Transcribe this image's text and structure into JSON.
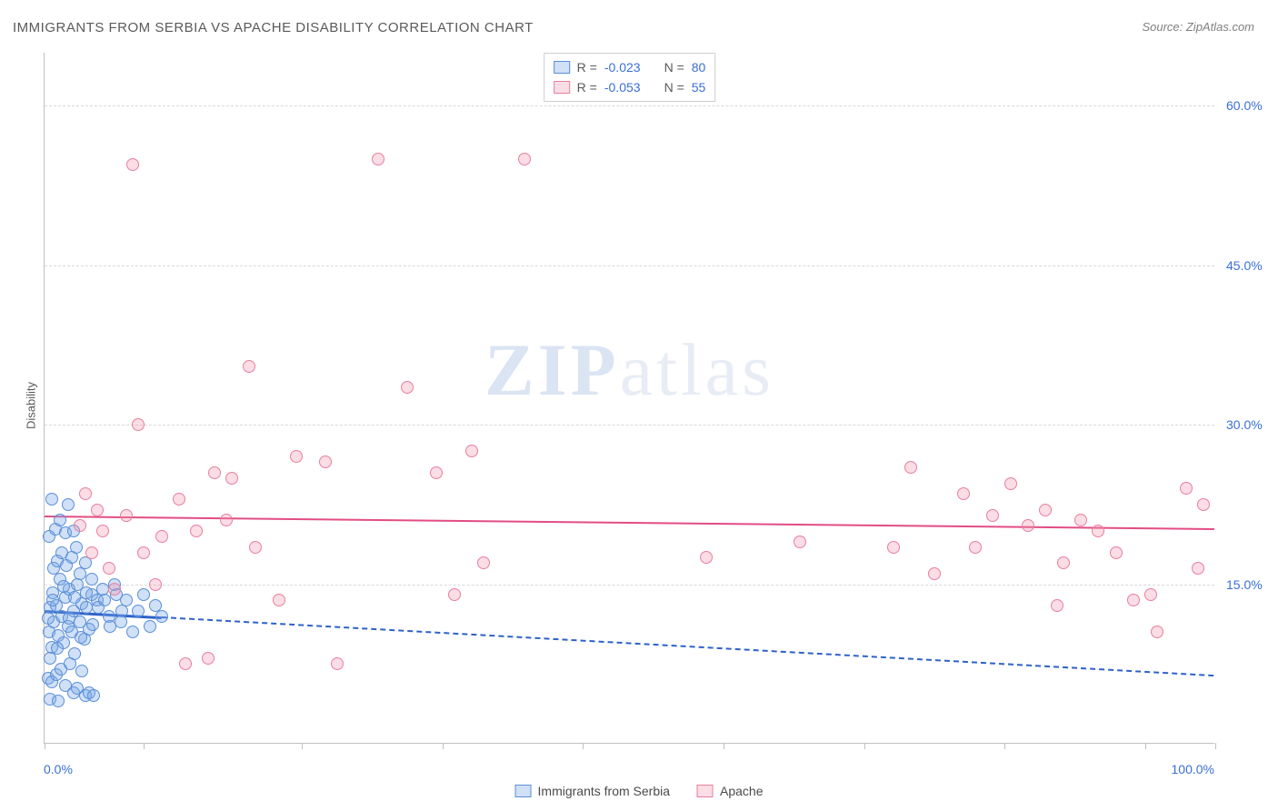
{
  "title": "IMMIGRANTS FROM SERBIA VS APACHE DISABILITY CORRELATION CHART",
  "source": "Source: ZipAtlas.com",
  "y_axis_label": "Disability",
  "watermark_a": "ZIP",
  "watermark_b": "atlas",
  "chart": {
    "type": "scatter",
    "xlim": [
      0,
      100
    ],
    "ylim": [
      0,
      65
    ],
    "x_ticks": [
      0,
      8.5,
      22,
      34,
      46,
      58,
      70,
      82,
      94,
      100
    ],
    "x_tick_labels": {
      "min": "0.0%",
      "max": "100.0%"
    },
    "y_gridlines": [
      15,
      30,
      45,
      60
    ],
    "y_tick_labels": [
      "15.0%",
      "30.0%",
      "45.0%",
      "60.0%"
    ],
    "background_color": "#ffffff",
    "grid_color": "#d8d8d8",
    "axis_color": "#c0c0c0",
    "tick_label_color": "#3a6fd8",
    "point_radius": 7,
    "series": [
      {
        "name": "Immigrants from Serbia",
        "fill": "rgba(120,165,230,0.35)",
        "stroke": "#5a8fd8",
        "reg_color": "#2e62c9",
        "reg_solid_until_x": 10,
        "reg_y_start": 12.6,
        "reg_y_end": 6.5,
        "r": "-0.023",
        "n": "80",
        "points": [
          [
            0.4,
            10.5
          ],
          [
            0.5,
            12.8
          ],
          [
            0.6,
            9.1
          ],
          [
            0.7,
            14.2
          ],
          [
            0.8,
            11.5
          ],
          [
            0.5,
            8.0
          ],
          [
            1.0,
            13.0
          ],
          [
            1.2,
            10.2
          ],
          [
            1.3,
            15.5
          ],
          [
            1.5,
            12.0
          ],
          [
            1.6,
            9.5
          ],
          [
            1.8,
            13.8
          ],
          [
            2.0,
            11.0
          ],
          [
            2.1,
            14.5
          ],
          [
            2.3,
            10.5
          ],
          [
            2.5,
            12.5
          ],
          [
            2.6,
            8.5
          ],
          [
            2.8,
            15.0
          ],
          [
            3.0,
            11.5
          ],
          [
            3.2,
            13.2
          ],
          [
            3.4,
            9.8
          ],
          [
            3.6,
            12.8
          ],
          [
            3.8,
            10.8
          ],
          [
            4.0,
            14.0
          ],
          [
            0.3,
            6.2
          ],
          [
            0.6,
            5.8
          ],
          [
            1.0,
            6.5
          ],
          [
            1.4,
            7.0
          ],
          [
            1.8,
            5.5
          ],
          [
            2.2,
            7.5
          ],
          [
            2.5,
            4.8
          ],
          [
            2.8,
            5.2
          ],
          [
            3.2,
            6.8
          ],
          [
            3.5,
            4.5
          ],
          [
            0.5,
            4.2
          ],
          [
            1.2,
            4.0
          ],
          [
            0.8,
            16.5
          ],
          [
            1.1,
            17.2
          ],
          [
            1.5,
            18.0
          ],
          [
            1.9,
            16.8
          ],
          [
            2.3,
            17.5
          ],
          [
            2.7,
            18.5
          ],
          [
            0.4,
            19.5
          ],
          [
            0.9,
            20.2
          ],
          [
            1.3,
            21.0
          ],
          [
            1.8,
            19.8
          ],
          [
            2.0,
            22.5
          ],
          [
            0.6,
            23.0
          ],
          [
            2.5,
            20.0
          ],
          [
            3.0,
            16.0
          ],
          [
            3.5,
            17.0
          ],
          [
            4.0,
            15.5
          ],
          [
            4.5,
            13.5
          ],
          [
            5.0,
            14.5
          ],
          [
            5.5,
            12.0
          ],
          [
            6.0,
            15.0
          ],
          [
            6.5,
            11.5
          ],
          [
            7.0,
            13.5
          ],
          [
            7.5,
            10.5
          ],
          [
            8.0,
            12.5
          ],
          [
            8.5,
            14.0
          ],
          [
            9.0,
            11.0
          ],
          [
            9.5,
            13.0
          ],
          [
            10.0,
            12.0
          ],
          [
            0.3,
            11.8
          ],
          [
            0.7,
            13.5
          ],
          [
            1.1,
            9.0
          ],
          [
            1.6,
            14.8
          ],
          [
            2.1,
            11.8
          ],
          [
            2.6,
            13.8
          ],
          [
            3.1,
            10.0
          ],
          [
            3.6,
            14.2
          ],
          [
            4.1,
            11.2
          ],
          [
            4.6,
            12.8
          ],
          [
            5.1,
            13.5
          ],
          [
            5.6,
            11.0
          ],
          [
            6.1,
            14.0
          ],
          [
            6.6,
            12.5
          ],
          [
            3.8,
            4.8
          ],
          [
            4.2,
            4.5
          ]
        ]
      },
      {
        "name": "Apache",
        "fill": "rgba(240,150,175,0.32)",
        "stroke": "#e87fa0",
        "reg_color": "#e24d84",
        "reg_solid_until_x": 100,
        "reg_y_start": 21.5,
        "reg_y_end": 20.3,
        "r": "-0.053",
        "n": "55",
        "points": [
          [
            3.5,
            23.5
          ],
          [
            5.0,
            20.0
          ],
          [
            6.0,
            14.5
          ],
          [
            7.5,
            54.5
          ],
          [
            8.0,
            30.0
          ],
          [
            10.0,
            19.5
          ],
          [
            11.5,
            23.0
          ],
          [
            13.0,
            20.0
          ],
          [
            14.5,
            25.5
          ],
          [
            16.0,
            25.0
          ],
          [
            15.5,
            21.0
          ],
          [
            17.5,
            35.5
          ],
          [
            18.0,
            18.5
          ],
          [
            20.0,
            13.5
          ],
          [
            21.5,
            27.0
          ],
          [
            24.0,
            26.5
          ],
          [
            28.5,
            55.0
          ],
          [
            31.0,
            33.5
          ],
          [
            33.5,
            25.5
          ],
          [
            35.0,
            14.0
          ],
          [
            36.5,
            27.5
          ],
          [
            37.5,
            17.0
          ],
          [
            41.0,
            55.0
          ],
          [
            56.5,
            17.5
          ],
          [
            64.5,
            19.0
          ],
          [
            4.0,
            18.0
          ],
          [
            5.5,
            16.5
          ],
          [
            7.0,
            21.5
          ],
          [
            8.5,
            18.0
          ],
          [
            9.5,
            15.0
          ],
          [
            12.0,
            7.5
          ],
          [
            14.0,
            8.0
          ],
          [
            25.0,
            7.5
          ],
          [
            3.0,
            20.5
          ],
          [
            4.5,
            22.0
          ],
          [
            72.5,
            18.5
          ],
          [
            74.0,
            26.0
          ],
          [
            76.0,
            16.0
          ],
          [
            78.5,
            23.5
          ],
          [
            79.5,
            18.5
          ],
          [
            81.0,
            21.5
          ],
          [
            82.5,
            24.5
          ],
          [
            84.0,
            20.5
          ],
          [
            85.5,
            22.0
          ],
          [
            87.0,
            17.0
          ],
          [
            86.5,
            13.0
          ],
          [
            88.5,
            21.0
          ],
          [
            90.0,
            20.0
          ],
          [
            91.5,
            18.0
          ],
          [
            93.0,
            13.5
          ],
          [
            94.5,
            14.0
          ],
          [
            95.0,
            10.5
          ],
          [
            97.5,
            24.0
          ],
          [
            98.5,
            16.5
          ],
          [
            99.0,
            22.5
          ]
        ]
      }
    ]
  },
  "legend_bottom": [
    "Immigrants from Serbia",
    "Apache"
  ]
}
